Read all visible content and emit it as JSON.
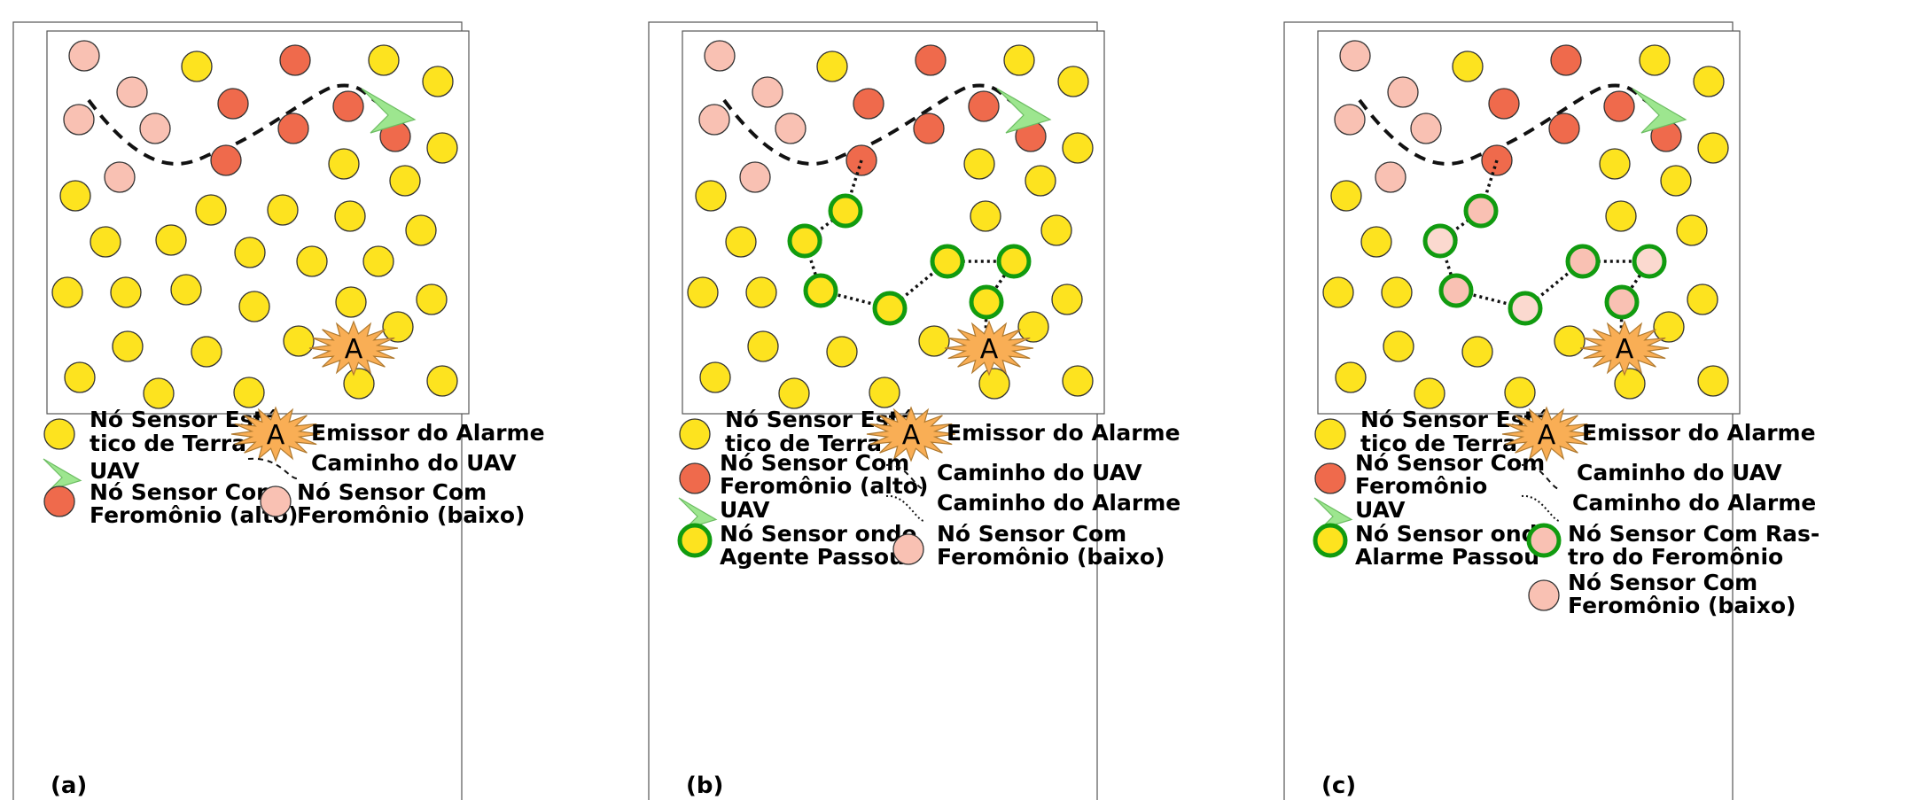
{
  "colors": {
    "static_node": "#fde31f",
    "pheromone_high": "#ef6a4c",
    "pheromone_low": "#f9c1b3",
    "agent_ring": "#119b10",
    "uav": "#9de68f",
    "alarm": "#f9ae55"
  },
  "panels": [
    {
      "label": "(a)",
      "legend": {
        "static_node": [
          "Nó Sensor Está-",
          "tico de Terra"
        ],
        "emitter": "Emissor do Alarme",
        "uav": "UAV",
        "uav_path": "Caminho do UAV",
        "pheromone_high": [
          "Nó Sensor Com",
          "Feromônio (alto)"
        ],
        "pheromone_low": [
          "Nó Sensor Com",
          "Feromônio (baixo)"
        ]
      }
    },
    {
      "label": "(b)",
      "legend": {
        "static_node": [
          "Nó Sensor Está-",
          "tico de Terra"
        ],
        "emitter": "Emissor do Alarme",
        "pheromone_high": [
          "Nó Sensor Com",
          "Feromônio (alto)"
        ],
        "uav_path": "Caminho do UAV",
        "alarm_path": "Caminho do Alarme",
        "uav": "UAV",
        "agent_node": [
          "Nó Sensor onde",
          "Agente Passou"
        ],
        "pheromone_low": [
          "Nó Sensor Com",
          "Feromônio (baixo)"
        ]
      }
    },
    {
      "label": "(c)",
      "legend": {
        "static_node": [
          "Nó Sensor Está-",
          "tico de Terra"
        ],
        "emitter": "Emissor do Alarme",
        "pheromone": [
          "Nó Sensor Com",
          "Feromônio"
        ],
        "uav_path": "Caminho do UAV",
        "uav": "UAV",
        "alarm_path": "Caminho do Alarme",
        "alarm_node": [
          "Nó Sensor onde",
          "Alarme Passou"
        ],
        "trace_node": [
          "Nó Sensor Com Ras-",
          "tro do Feromônio"
        ],
        "pheromone_low": [
          "Nó Sensor Com",
          "Feromônio (baixo)"
        ]
      }
    }
  ],
  "alarm_letter": "A"
}
